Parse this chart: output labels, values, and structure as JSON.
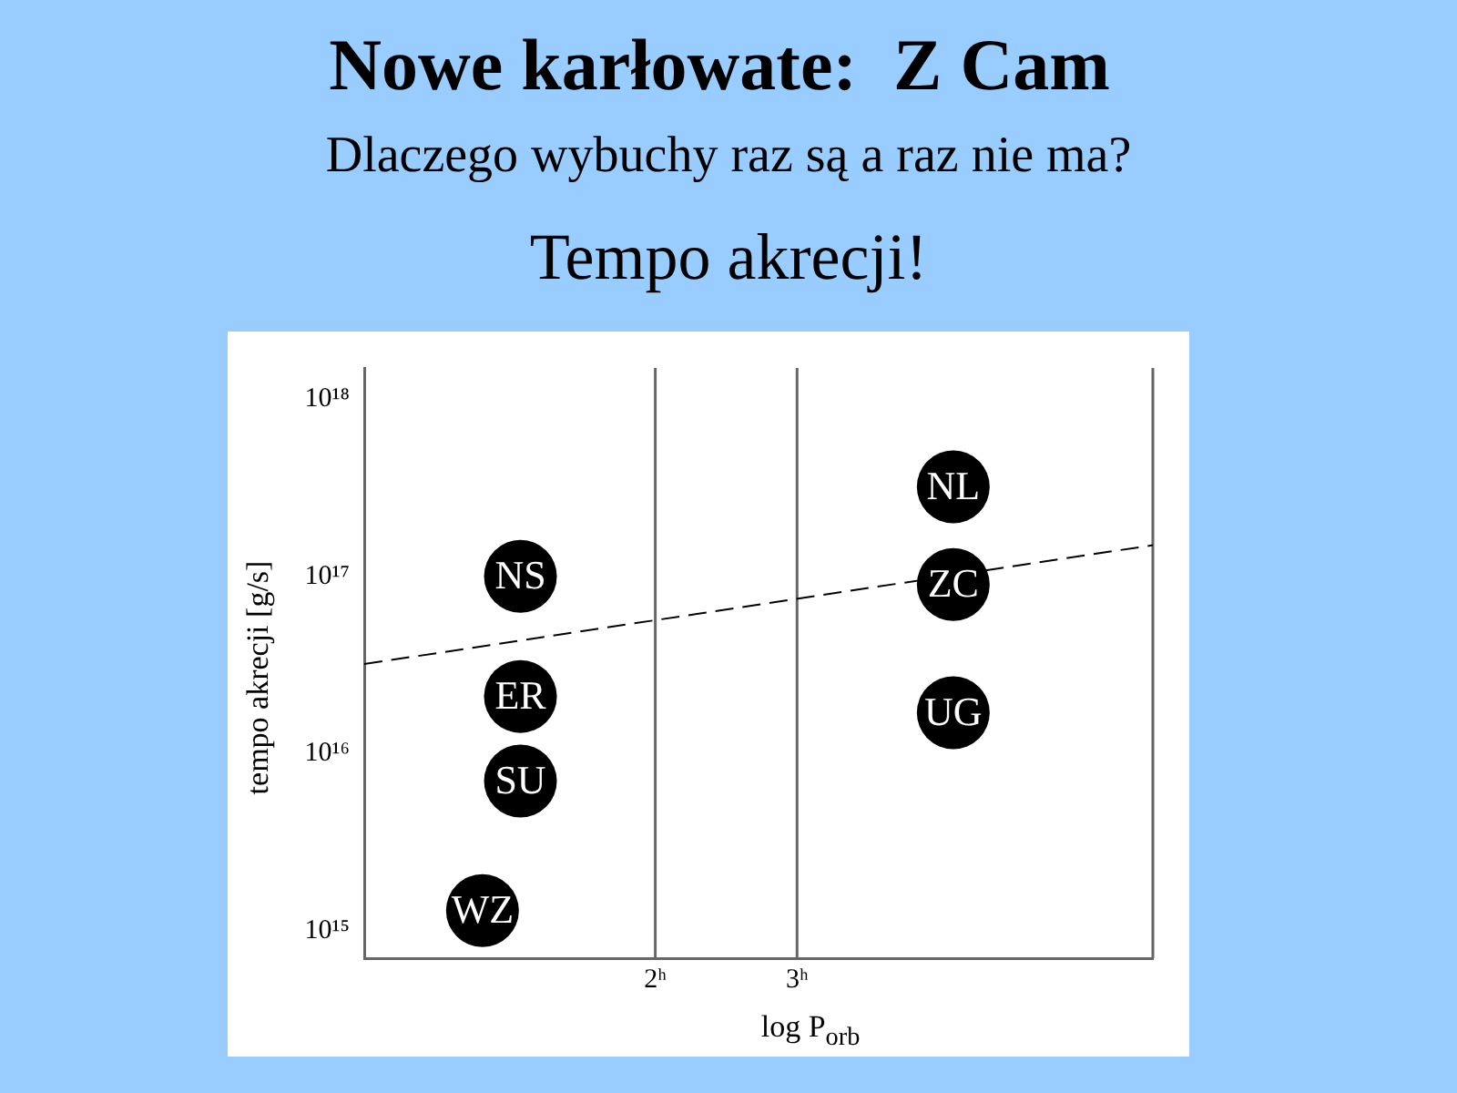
{
  "chart_data": {
    "type": "scatter",
    "title": "Nowe karłowate:  Z Cam",
    "subtitle": "Dlaczego wybuchy raz są a raz nie ma?",
    "annotations": [
      "Tempo akrecji!"
    ],
    "xlabel": "log P$_{orb}$",
    "ylabel": "tempo akrecji [g/s]",
    "log": "xy",
    "grid": false,
    "legend": false,
    "marker": "circle",
    "xlim": [
      0.87,
      8.3
    ],
    "xticks": [
      {
        "value": 2,
        "label": "2ʰ"
      },
      {
        "value": 3,
        "label": "3ʰ"
      }
    ],
    "ylim": [
      700000000000000.0,
      1.5e+18
    ],
    "yticks": [
      {
        "value": 1e+18,
        "label": "10¹⁸"
      },
      {
        "value": 1e+17,
        "label": "10¹⁷"
      },
      {
        "value": 1e+16,
        "label": "10¹⁶"
      },
      {
        "value": 1000000000000000.0,
        "label": "10¹⁵"
      }
    ],
    "ref_lines": [
      {
        "axis": "x",
        "value": 2,
        "color": "#666666"
      },
      {
        "axis": "x",
        "value": 3,
        "color": "#666666"
      }
    ],
    "series": [
      {
        "type": "line",
        "color": "#000000",
        "line_style": "dashed",
        "marker": "none",
        "x": [
          0.87,
          8.3
        ],
        "values": [
          3.2e+16,
          1.5e+17
        ]
      },
      {
        "name": "NS",
        "color": "#000000",
        "x": [
          1.36
        ],
        "values": [
          1e+17
        ]
      },
      {
        "name": "ER",
        "color": "#000000",
        "x": [
          1.36
        ],
        "values": [
          2.1e+16
        ]
      },
      {
        "name": "SU",
        "color": "#000000",
        "x": [
          1.36
        ],
        "values": [
          7000000000000000.0
        ]
      },
      {
        "name": "WZ",
        "color": "#000000",
        "x": [
          1.22
        ],
        "values": [
          1300000000000000.0
        ]
      },
      {
        "name": "NL",
        "color": "#000000",
        "x": [
          4.69
        ],
        "values": [
          3.2e+17
        ]
      },
      {
        "name": "ZC",
        "color": "#000000",
        "x": [
          4.69
        ],
        "values": [
          9e+16
        ]
      },
      {
        "name": "UG",
        "color": "#000000",
        "x": [
          4.69
        ],
        "values": [
          1.7e+16
        ]
      }
    ]
  }
}
